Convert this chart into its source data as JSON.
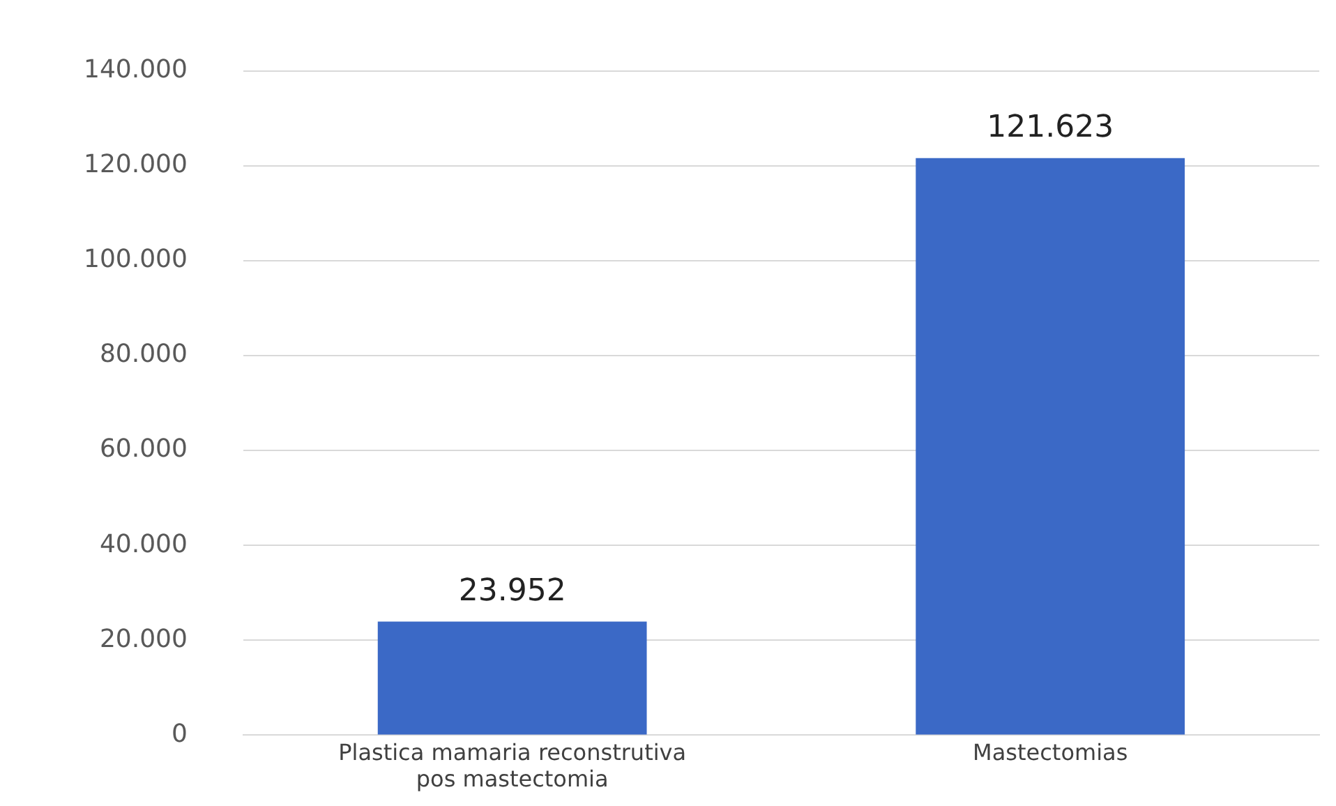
{
  "chart_data": {
    "type": "bar",
    "categories": [
      "Plastica mamaria reconstrutiva pos mastectomia",
      "Mastectomias"
    ],
    "values": [
      23952,
      121623
    ],
    "value_labels": [
      "23.952",
      "121.623"
    ],
    "color": "#3b69c6",
    "ylim": [
      0,
      140000
    ],
    "yticks": [
      {
        "value": 0,
        "label": "0"
      },
      {
        "value": 20000,
        "label": "20.000"
      },
      {
        "value": 40000,
        "label": "40.000"
      },
      {
        "value": 60000,
        "label": "60.000"
      },
      {
        "value": 80000,
        "label": "80.000"
      },
      {
        "value": 100000,
        "label": "100.000"
      },
      {
        "value": 120000,
        "label": "120.000"
      },
      {
        "value": 140000,
        "label": "140.000"
      }
    ],
    "grid": "y"
  }
}
